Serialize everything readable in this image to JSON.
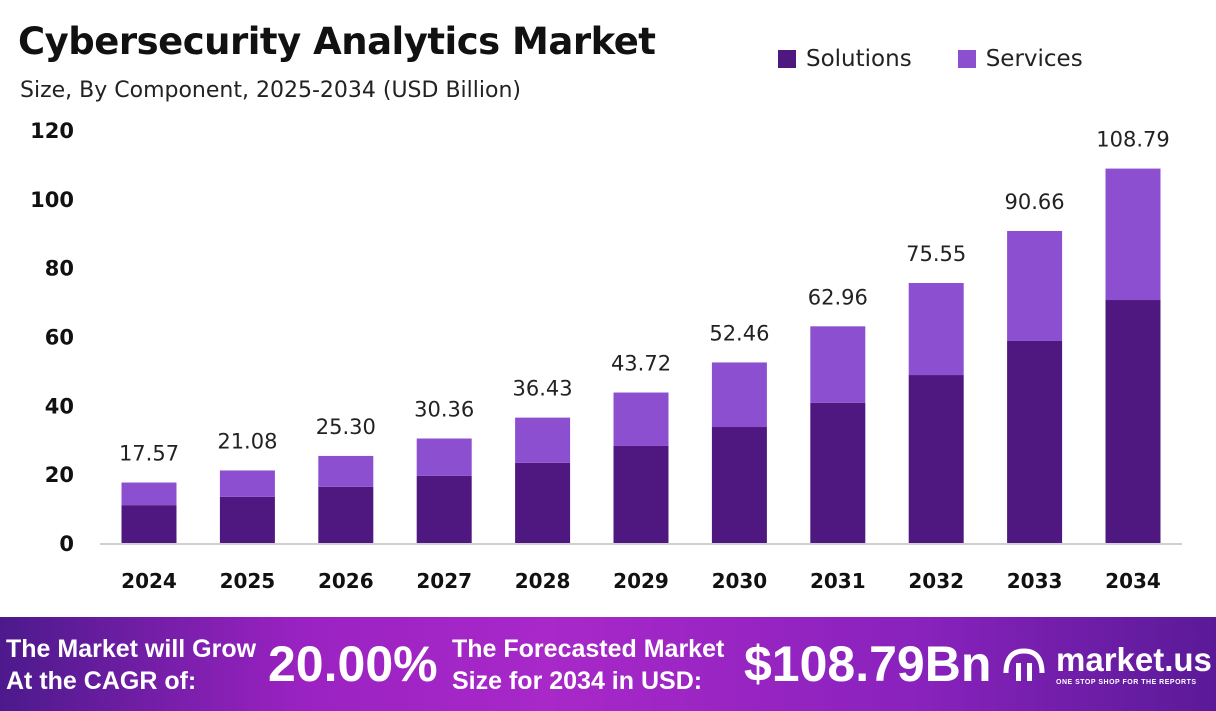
{
  "header": {
    "title": "Cybersecurity Analytics Market",
    "subtitle": "Size, By Component, 2025-2034 (USD Billion)"
  },
  "chart_data": {
    "type": "bar",
    "stacked": true,
    "title": "Cybersecurity Analytics Market",
    "subtitle": "Size, By Component, 2025-2034 (USD Billion)",
    "categories": [
      "2024",
      "2025",
      "2026",
      "2027",
      "2028",
      "2029",
      "2030",
      "2031",
      "2032",
      "2033",
      "2034"
    ],
    "series": [
      {
        "name": "Solutions",
        "color": "#4f1880",
        "values": [
          11.0,
          13.4,
          16.3,
          19.5,
          23.3,
          28.2,
          33.7,
          40.7,
          48.8,
          58.7,
          70.6
        ]
      },
      {
        "name": "Services",
        "color": "#8c4fcf",
        "values": [
          6.57,
          7.68,
          9.0,
          10.86,
          13.13,
          15.52,
          18.76,
          22.26,
          26.75,
          31.96,
          38.19
        ]
      }
    ],
    "totals": [
      "17.57",
      "21.08",
      "25.30",
      "30.36",
      "36.43",
      "43.72",
      "52.46",
      "62.96",
      "75.55",
      "90.66",
      "108.79"
    ],
    "ylim": [
      0,
      120
    ],
    "yticks": [
      "0",
      "20",
      "40",
      "60",
      "80",
      "100",
      "120"
    ],
    "grid": false,
    "legend": "top-right"
  },
  "banner": {
    "cagr_label_1": "The Market will Grow",
    "cagr_label_2": "At the CAGR of:",
    "cagr_value": "20.00%",
    "forecast_label_1": "The Forecasted Market",
    "forecast_label_2": "Size for 2034 in USD:",
    "forecast_value": "$108.79Bn",
    "logo": "market.us",
    "tagline": "ONE STOP SHOP FOR THE REPORTS"
  }
}
